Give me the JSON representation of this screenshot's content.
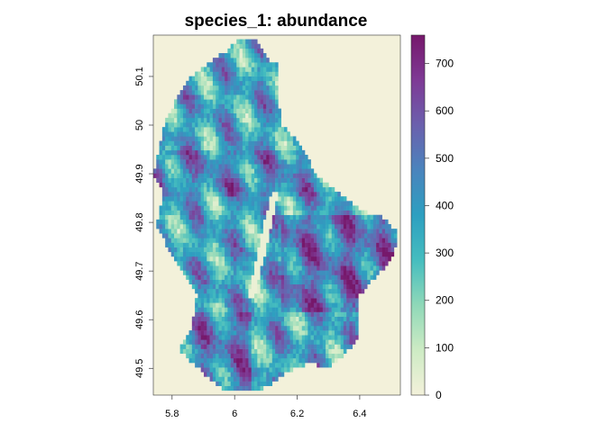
{
  "chart_data": {
    "type": "heatmap",
    "title": "species_1: abundance",
    "xlabel": "",
    "ylabel": "",
    "xlim": [
      5.74,
      6.53
    ],
    "ylim": [
      49.445,
      50.185
    ],
    "x_ticks": [
      5.8,
      6.0,
      6.2,
      6.4
    ],
    "x_tick_labels": [
      "5.8",
      "6",
      "6.2",
      "6.4"
    ],
    "y_ticks": [
      49.5,
      49.6,
      49.7,
      49.8,
      49.9,
      50.0,
      50.1
    ],
    "y_tick_labels": [
      "49.5",
      "49.6",
      "49.7",
      "49.8",
      "49.9",
      "50",
      "50.1"
    ],
    "background_color": "#f3f1da",
    "grid": false,
    "legend": {
      "position": "right",
      "type": "colorbar",
      "range": [
        0,
        760
      ],
      "ticks": [
        0,
        100,
        200,
        300,
        400,
        500,
        600,
        700
      ],
      "tick_labels": [
        "0",
        "100",
        "200",
        "300",
        "400",
        "500",
        "600",
        "700"
      ],
      "colors": [
        "#f3f1da",
        "#cdebc4",
        "#8fd8b8",
        "#45bdbf",
        "#2d9fc0",
        "#4a84bd",
        "#6b60ad",
        "#7e3a95",
        "#76186b"
      ]
    },
    "region": {
      "outline_lon_lat": [
        [
          6.02,
          50.18
        ],
        [
          6.08,
          50.17
        ],
        [
          6.11,
          50.13
        ],
        [
          6.14,
          50.13
        ],
        [
          6.14,
          50.05
        ],
        [
          6.15,
          50.0
        ],
        [
          6.21,
          49.96
        ],
        [
          6.26,
          49.9
        ],
        [
          6.33,
          49.86
        ],
        [
          6.42,
          49.82
        ],
        [
          6.48,
          49.81
        ],
        [
          6.52,
          49.78
        ],
        [
          6.51,
          49.73
        ],
        [
          6.44,
          49.68
        ],
        [
          6.4,
          49.65
        ],
        [
          6.4,
          49.57
        ],
        [
          6.37,
          49.54
        ],
        [
          6.3,
          49.5
        ],
        [
          6.24,
          49.51
        ],
        [
          6.16,
          49.49
        ],
        [
          6.1,
          49.46
        ],
        [
          6.03,
          49.45
        ],
        [
          5.97,
          49.45
        ],
        [
          5.9,
          49.49
        ],
        [
          5.82,
          49.54
        ],
        [
          5.86,
          49.58
        ],
        [
          5.88,
          49.65
        ],
        [
          5.82,
          49.71
        ],
        [
          5.75,
          49.79
        ],
        [
          5.77,
          49.86
        ],
        [
          5.74,
          49.9
        ],
        [
          5.78,
          50.01
        ],
        [
          5.82,
          50.06
        ],
        [
          5.86,
          50.1
        ],
        [
          5.92,
          50.13
        ],
        [
          5.97,
          50.15
        ]
      ],
      "cell_size_deg": 0.0095
    }
  }
}
